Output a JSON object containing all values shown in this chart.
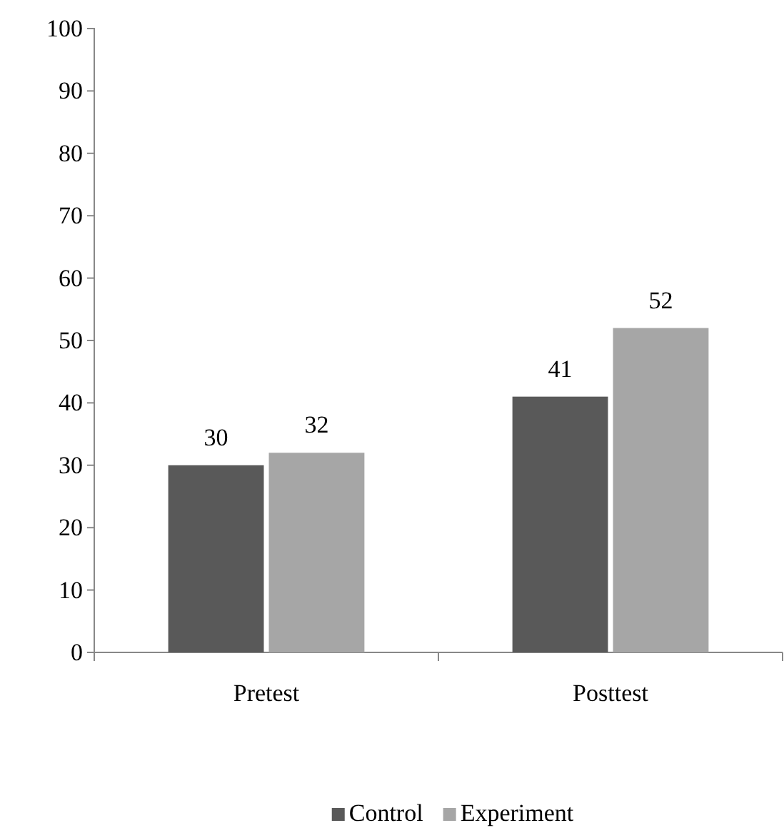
{
  "chart_data": {
    "type": "bar",
    "categories": [
      "Pretest",
      "Posttest"
    ],
    "series": [
      {
        "name": "Control",
        "color": "#595959",
        "values": [
          30,
          41
        ]
      },
      {
        "name": "Experiment",
        "color": "#a6a6a6",
        "values": [
          32,
          52
        ]
      }
    ],
    "ylim": [
      0,
      100
    ],
    "yticks": [
      0,
      10,
      20,
      30,
      40,
      50,
      60,
      70,
      80,
      90,
      100
    ],
    "data_labels": true,
    "legend": "bottom",
    "grid": false
  }
}
